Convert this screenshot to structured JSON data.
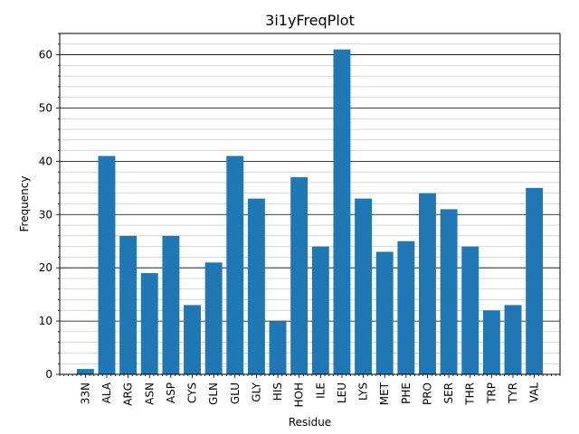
{
  "chart_data": {
    "type": "bar",
    "title": "3i1yFreqPlot",
    "xlabel": "Residue",
    "ylabel": "Frequency",
    "categories": [
      "33N",
      "ALA",
      "ARG",
      "ASN",
      "ASP",
      "CYS",
      "GLN",
      "GLU",
      "GLY",
      "HIS",
      "HOH",
      "ILE",
      "LEU",
      "LYS",
      "MET",
      "PHE",
      "PRO",
      "SER",
      "THR",
      "TRP",
      "TYR",
      "VAL"
    ],
    "values": [
      1,
      41,
      26,
      19,
      26,
      13,
      21,
      41,
      33,
      10,
      37,
      24,
      61,
      33,
      23,
      25,
      34,
      31,
      24,
      12,
      13,
      35
    ],
    "ylim": [
      0,
      64
    ],
    "yticks": [
      0,
      10,
      20,
      30,
      40,
      50,
      60
    ],
    "minor_grid_step": 2,
    "grid": true,
    "bar_color": "#1f77b4"
  }
}
